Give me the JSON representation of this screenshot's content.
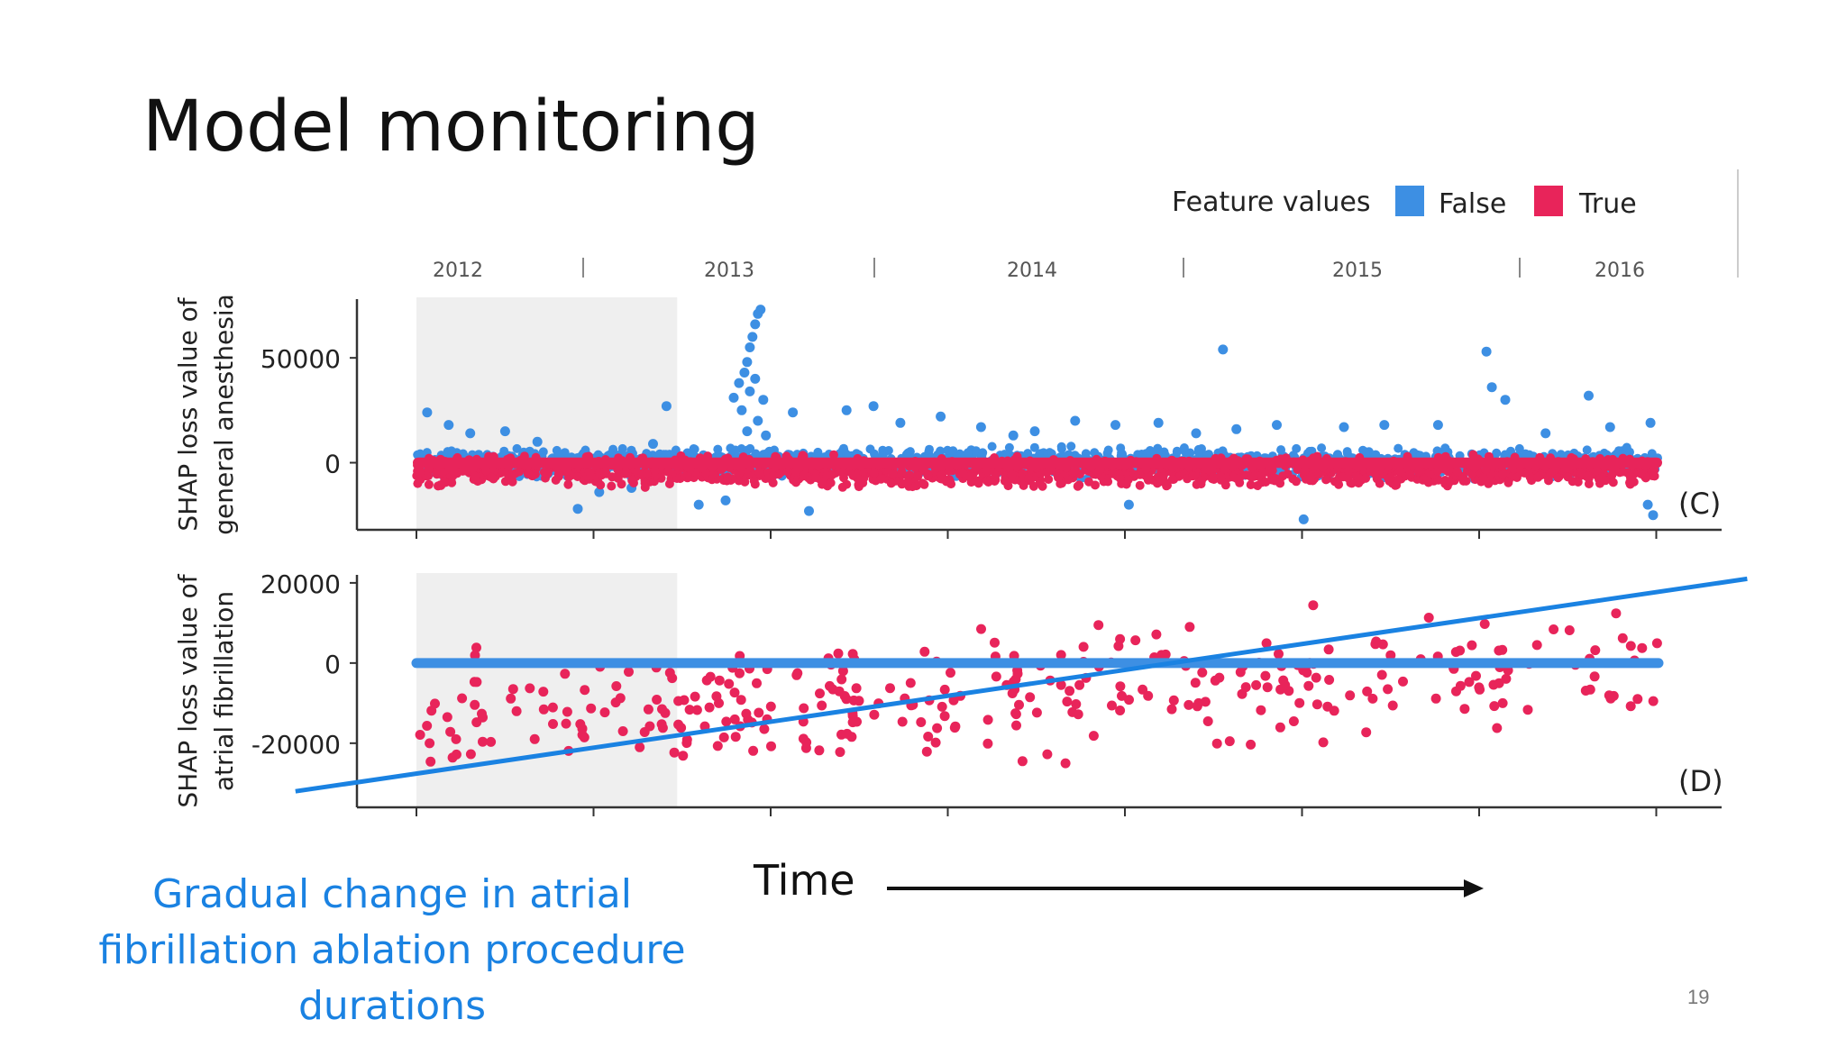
{
  "slide": {
    "title": "Model monitoring",
    "caption": "Gradual change in atrial fibrillation ablation procedure durations",
    "time_label": "Time",
    "page_number": "19"
  },
  "colors": {
    "false": "#3d8fe3",
    "true": "#e8245a",
    "trend_line": "#1a82e2",
    "shade": "#efefef",
    "axis": "#333333",
    "text": "#111111"
  },
  "chart_data": {
    "legend": {
      "title": "Feature values",
      "entries": [
        {
          "label": "False",
          "color": "#3d8fe3"
        },
        {
          "label": "True",
          "color": "#e8245a"
        }
      ],
      "placement": "top-right"
    },
    "year_labels": [
      "2012",
      "2013",
      "2014",
      "2015",
      "2016"
    ],
    "charts": [
      {
        "type": "scatter",
        "panel_label": "(C)",
        "ylabel": [
          "SHAP loss value of",
          "general anesthesia"
        ],
        "ytick_labels": [
          "50000",
          "0"
        ],
        "yticks": [
          50000,
          0
        ],
        "ylim": [
          -32000,
          78000
        ],
        "xlim": [
          2012.0,
          2016.62
        ],
        "shaded_region": [
          2012.0,
          2012.97
        ],
        "series": [
          {
            "name": "False",
            "band": [
              -9000,
              9000
            ],
            "outliers": [
              [
                2012.04,
                24000
              ],
              [
                2012.12,
                18000
              ],
              [
                2012.2,
                14000
              ],
              [
                2012.33,
                15000
              ],
              [
                2012.45,
                10000
              ],
              [
                2012.6,
                -22000
              ],
              [
                2012.68,
                -14000
              ],
              [
                2012.8,
                -12000
              ],
              [
                2012.88,
                9000
              ],
              [
                2012.93,
                27000
              ],
              [
                2013.05,
                -20000
              ],
              [
                2013.15,
                -18000
              ],
              [
                2013.18,
                31000
              ],
              [
                2013.2,
                38000
              ],
              [
                2013.22,
                43000
              ],
              [
                2013.23,
                48000
              ],
              [
                2013.24,
                55000
              ],
              [
                2013.25,
                60000
              ],
              [
                2013.26,
                66000
              ],
              [
                2013.27,
                71000
              ],
              [
                2013.28,
                73000
              ],
              [
                2013.21,
                25000
              ],
              [
                2013.24,
                34000
              ],
              [
                2013.26,
                40000
              ],
              [
                2013.29,
                30000
              ],
              [
                2013.27,
                20000
              ],
              [
                2013.23,
                15000
              ],
              [
                2013.3,
                13000
              ],
              [
                2013.4,
                24000
              ],
              [
                2013.46,
                -23000
              ],
              [
                2013.6,
                25000
              ],
              [
                2013.7,
                27000
              ],
              [
                2013.8,
                19000
              ],
              [
                2013.95,
                22000
              ],
              [
                2014.1,
                17000
              ],
              [
                2014.22,
                13000
              ],
              [
                2014.3,
                15000
              ],
              [
                2014.45,
                20000
              ],
              [
                2014.6,
                18000
              ],
              [
                2014.65,
                -20000
              ],
              [
                2014.76,
                19000
              ],
              [
                2014.9,
                14000
              ],
              [
                2015.0,
                54000
              ],
              [
                2015.05,
                16000
              ],
              [
                2015.2,
                18000
              ],
              [
                2015.3,
                -27000
              ],
              [
                2015.45,
                17000
              ],
              [
                2015.6,
                18000
              ],
              [
                2015.8,
                18000
              ],
              [
                2015.98,
                53000
              ],
              [
                2016.0,
                36000
              ],
              [
                2016.05,
                30000
              ],
              [
                2016.2,
                14000
              ],
              [
                2016.36,
                32000
              ],
              [
                2016.44,
                17000
              ],
              [
                2016.59,
                19000
              ],
              [
                2016.6,
                -25000
              ],
              [
                2016.58,
                -20000
              ]
            ]
          },
          {
            "name": "True",
            "band": [
              -12000,
              4000
            ]
          }
        ]
      },
      {
        "type": "scatter",
        "panel_label": "(D)",
        "ylabel": [
          "SHAP loss value of",
          "atrial fibrillation"
        ],
        "ytick_labels": [
          "20000",
          "0",
          "-20000"
        ],
        "yticks": [
          20000,
          0,
          -20000
        ],
        "ylim": [
          -36000,
          22000
        ],
        "xlim": [
          2012.0,
          2016.62
        ],
        "shaded_region": [
          2012.0,
          2012.97
        ],
        "series": [
          {
            "name": "False",
            "value": 0
          },
          {
            "name": "True",
            "trend_start": -15000,
            "trend_end": 500,
            "count": 330
          }
        ],
        "trend_line": {
          "start": [
            2011.55,
            -32000
          ],
          "end": [
            2016.95,
            21000
          ]
        }
      }
    ]
  }
}
